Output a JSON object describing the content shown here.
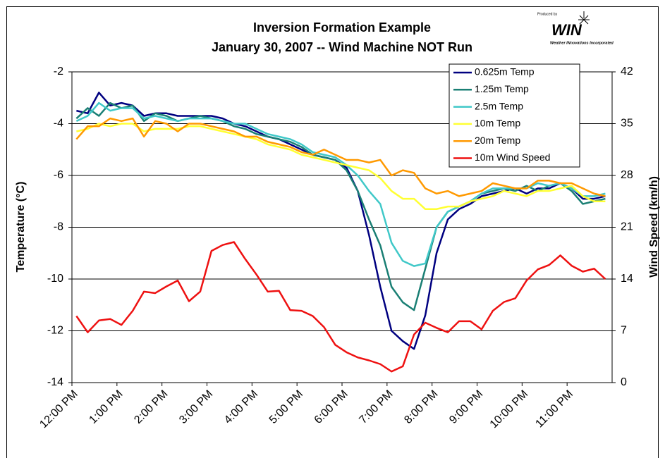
{
  "chart_data": {
    "type": "line",
    "title": "Inversion Formation Example",
    "subtitle": "January 30, 2007 -- Wind Machine NOT Run",
    "logo": {
      "produced_by": "Produced by",
      "name": "WIN",
      "company": "Weather INnovations Incorporated"
    },
    "y_label": "Temperature (°C)",
    "y2_label": "Wind Speed (km/h)",
    "xlim": [
      0,
      12
    ],
    "xticks": [
      {
        "value": 0,
        "label": "12:00 PM"
      },
      {
        "value": 1,
        "label": "1:00 PM"
      },
      {
        "value": 2,
        "label": "2:00 PM"
      },
      {
        "value": 3,
        "label": "3:00 PM"
      },
      {
        "value": 4,
        "label": "4:00 PM"
      },
      {
        "value": 5,
        "label": "5:00 PM"
      },
      {
        "value": 6,
        "label": "6:00 PM"
      },
      {
        "value": 7,
        "label": "7:00 PM"
      },
      {
        "value": 8,
        "label": "8:00 PM"
      },
      {
        "value": 9,
        "label": "9:00 PM"
      },
      {
        "value": 10,
        "label": "10:00 PM"
      },
      {
        "value": 11,
        "label": "11:00 PM"
      }
    ],
    "ylim": [
      -14,
      -2
    ],
    "yticks": [
      -14,
      -12,
      -10,
      -8,
      -6,
      -4,
      -2
    ],
    "y2lim": [
      0,
      42
    ],
    "y2ticks": [
      0,
      7,
      14,
      21,
      28,
      35,
      42
    ],
    "grid": true,
    "legend": "top-right",
    "x": [
      0.1,
      0.35,
      0.6,
      0.85,
      1.1,
      1.35,
      1.6,
      1.85,
      2.1,
      2.35,
      2.6,
      2.85,
      3.1,
      3.35,
      3.6,
      3.85,
      4.1,
      4.35,
      4.6,
      4.85,
      5.1,
      5.35,
      5.6,
      5.85,
      6.1,
      6.35,
      6.6,
      6.85,
      7.1,
      7.35,
      7.6,
      7.85,
      8.1,
      8.35,
      8.6,
      8.85,
      9.1,
      9.35,
      9.6,
      9.85,
      10.1,
      10.35,
      10.6,
      10.85,
      11.1,
      11.35,
      11.6,
      11.85
    ],
    "series": [
      {
        "name": "0.625m Temp",
        "color": "#000080",
        "values": [
          -3.5,
          -3.6,
          -2.8,
          -3.3,
          -3.2,
          -3.3,
          -3.7,
          -3.6,
          -3.6,
          -3.7,
          -3.7,
          -3.7,
          -3.7,
          -3.8,
          -4.0,
          -4.1,
          -4.3,
          -4.5,
          -4.6,
          -4.8,
          -5.0,
          -5.2,
          -5.3,
          -5.4,
          -5.7,
          -6.6,
          -8.3,
          -10.3,
          -12.0,
          -12.4,
          -12.7,
          -11.4,
          -9.0,
          -7.7,
          -7.3,
          -7.1,
          -6.8,
          -6.7,
          -6.6,
          -6.5,
          -6.7,
          -6.5,
          -6.5,
          -6.3,
          -6.5,
          -6.9,
          -6.9,
          -6.8
        ]
      },
      {
        "name": "1.25m Temp",
        "color": "#1a7f74",
        "values": [
          -3.8,
          -3.4,
          -3.7,
          -3.2,
          -3.4,
          -3.3,
          -3.9,
          -3.6,
          -3.7,
          -3.9,
          -3.8,
          -3.7,
          -3.8,
          -3.9,
          -4.1,
          -4.2,
          -4.4,
          -4.5,
          -4.6,
          -4.7,
          -4.9,
          -5.2,
          -5.3,
          -5.4,
          -5.8,
          -6.6,
          -7.7,
          -8.7,
          -10.3,
          -10.9,
          -11.2,
          -9.6,
          -8.0,
          -7.4,
          -7.2,
          -7.0,
          -6.7,
          -6.6,
          -6.5,
          -6.6,
          -6.4,
          -6.6,
          -6.4,
          -6.3,
          -6.6,
          -7.1,
          -7.0,
          -6.9
        ]
      },
      {
        "name": "2.5m Temp",
        "color": "#40c8c8",
        "values": [
          -3.9,
          -3.7,
          -3.2,
          -3.5,
          -3.4,
          -3.4,
          -3.8,
          -3.7,
          -3.8,
          -3.9,
          -3.8,
          -3.8,
          -3.8,
          -3.9,
          -4.0,
          -4.0,
          -4.2,
          -4.4,
          -4.5,
          -4.6,
          -4.8,
          -5.1,
          -5.2,
          -5.3,
          -5.6,
          -6.0,
          -6.6,
          -7.1,
          -8.6,
          -9.3,
          -9.5,
          -9.4,
          -8.0,
          -7.4,
          -7.2,
          -7.0,
          -6.7,
          -6.5,
          -6.5,
          -6.5,
          -6.5,
          -6.3,
          -6.4,
          -6.3,
          -6.5,
          -6.8,
          -6.8,
          -6.7
        ]
      },
      {
        "name": "10m Temp",
        "color": "#ffff33",
        "values": [
          -4.3,
          -4.2,
          -4.0,
          -4.1,
          -4.0,
          -4.0,
          -4.3,
          -4.2,
          -4.2,
          -4.2,
          -4.1,
          -4.1,
          -4.2,
          -4.3,
          -4.4,
          -4.5,
          -4.6,
          -4.8,
          -4.9,
          -5.0,
          -5.2,
          -5.3,
          -5.4,
          -5.5,
          -5.6,
          -5.7,
          -5.8,
          -6.1,
          -6.6,
          -6.9,
          -6.9,
          -7.3,
          -7.3,
          -7.2,
          -7.2,
          -7.0,
          -6.9,
          -6.8,
          -6.6,
          -6.7,
          -6.8,
          -6.6,
          -6.6,
          -6.5,
          -6.4,
          -6.8,
          -7.0,
          -7.0
        ]
      },
      {
        "name": "20m Temp",
        "color": "#ff9900",
        "values": [
          -4.6,
          -4.1,
          -4.1,
          -3.8,
          -3.9,
          -3.8,
          -4.5,
          -3.9,
          -4.0,
          -4.3,
          -4.0,
          -4.0,
          -4.1,
          -4.2,
          -4.3,
          -4.5,
          -4.5,
          -4.7,
          -4.8,
          -4.9,
          -5.1,
          -5.2,
          -5.0,
          -5.2,
          -5.4,
          -5.4,
          -5.5,
          -5.4,
          -6.0,
          -5.8,
          -5.9,
          -6.5,
          -6.7,
          -6.6,
          -6.8,
          -6.7,
          -6.6,
          -6.3,
          -6.4,
          -6.5,
          -6.5,
          -6.2,
          -6.2,
          -6.3,
          -6.3,
          -6.5,
          -6.7,
          -6.8
        ]
      },
      {
        "name": "10m Wind Speed",
        "color": "#ee1111",
        "axis": "y2",
        "values": [
          9.0,
          6.8,
          8.4,
          8.6,
          7.8,
          9.7,
          12.3,
          12.1,
          13.0,
          13.8,
          11.0,
          12.3,
          17.8,
          18.6,
          19.0,
          16.7,
          14.6,
          12.3,
          12.4,
          9.8,
          9.7,
          9.0,
          7.5,
          5.1,
          4.1,
          3.4,
          3.0,
          2.5,
          1.5,
          2.2,
          6.5,
          8.1,
          7.4,
          6.8,
          8.3,
          8.3,
          7.2,
          9.7,
          10.9,
          11.4,
          13.8,
          15.3,
          15.9,
          17.2,
          15.8,
          15.0,
          15.4,
          14.0
        ]
      }
    ]
  }
}
